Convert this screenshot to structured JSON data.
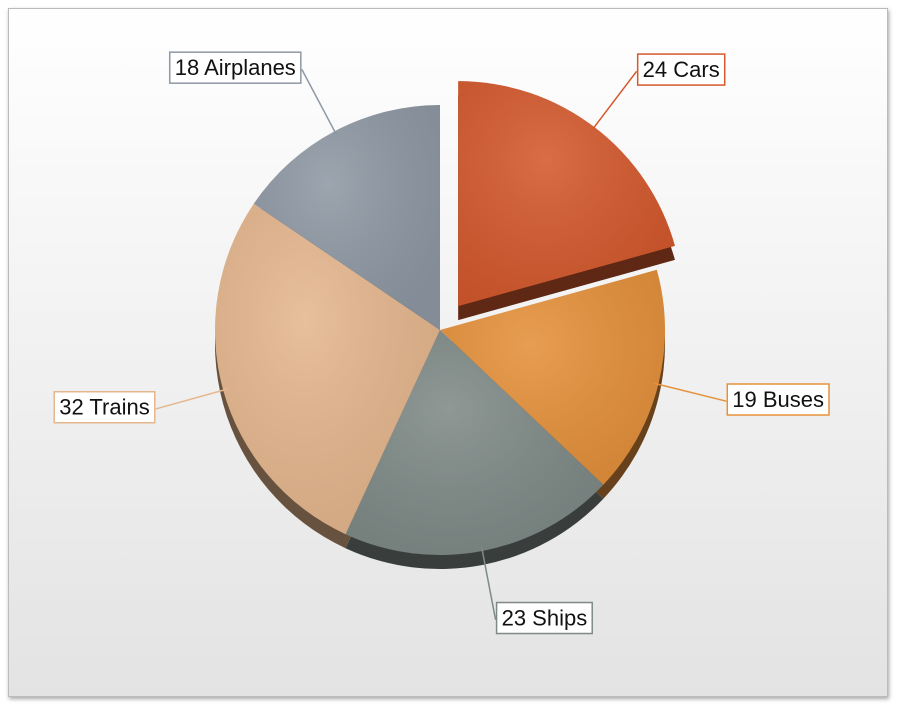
{
  "chart_data": {
    "type": "pie",
    "values": [
      24,
      19,
      23,
      32,
      18
    ],
    "value_labels": [
      "24 Cars",
      "19 Buses",
      "23 Ships",
      "32 Trains",
      "18 Airplanes"
    ],
    "colors": [
      "#d4592d",
      "#e5913b",
      "#7f8a87",
      "#e5b78e",
      "#8f99a4"
    ],
    "exploded": [
      true,
      false,
      false,
      false,
      false
    ]
  }
}
